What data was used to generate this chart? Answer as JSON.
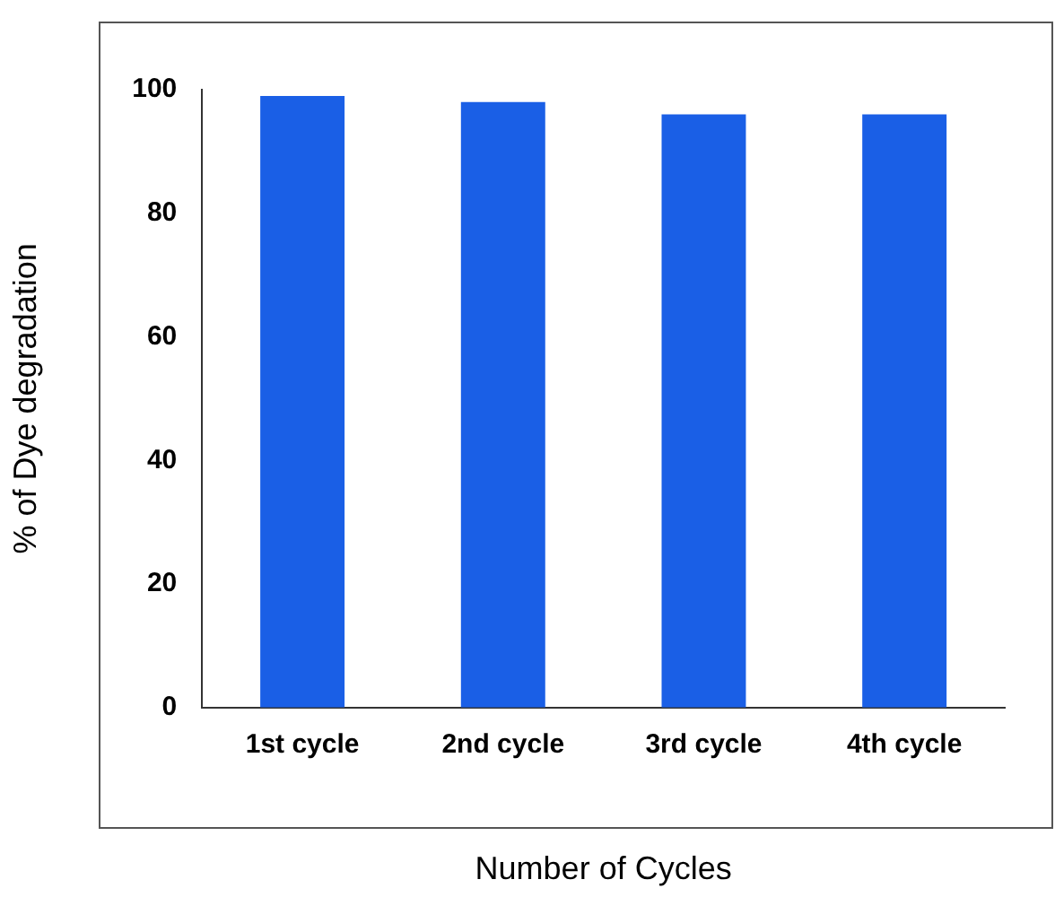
{
  "chart_data": {
    "type": "bar",
    "categories": [
      "1st cycle",
      "2nd cycle",
      "3rd cycle",
      "4th cycle"
    ],
    "values": [
      99,
      98,
      96,
      96
    ],
    "color": "#1a5fe6",
    "xlabel": "Number of Cycles",
    "ylabel": "% of Dye degradation",
    "ylim": [
      0,
      100
    ],
    "yticks": [
      0,
      20,
      40,
      60,
      80,
      100
    ],
    "grid": false,
    "legend": false
  }
}
